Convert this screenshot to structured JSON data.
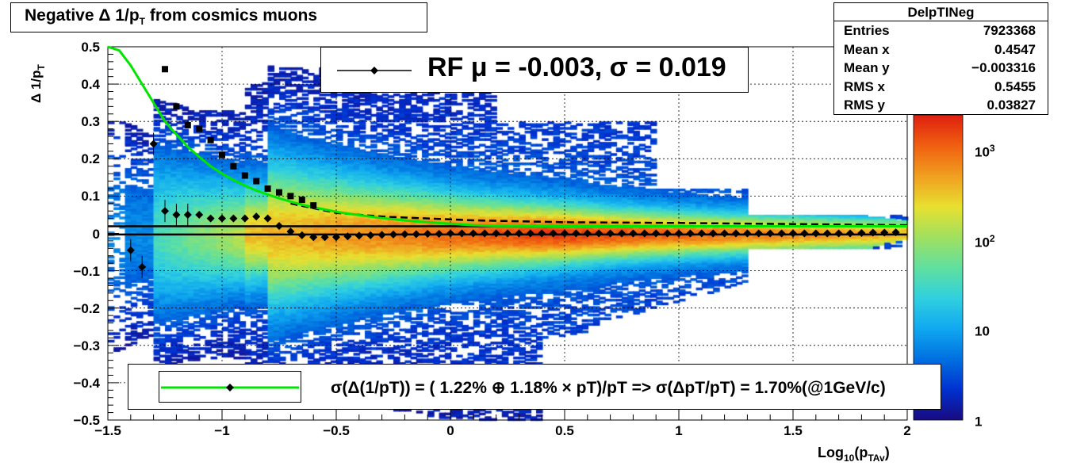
{
  "title": {
    "prefix": "Negative ",
    "delta": "Δ",
    "mid": " 1/p",
    "sub": "T",
    "suffix": " from cosmics muons"
  },
  "stats_box": {
    "name": "DelpTINeg",
    "rows": [
      {
        "label": "Entries",
        "value": "7923368"
      },
      {
        "label": "Mean x",
        "value": "0.4547"
      },
      {
        "label": "Mean y",
        "value": "−0.003316"
      },
      {
        "label": "RMS x",
        "value": "0.5455"
      },
      {
        "label": "RMS y",
        "value": "0.03827"
      }
    ]
  },
  "rf_legend": {
    "text": "RF μ = -0.003, σ =   0.019"
  },
  "fit_legend": {
    "text": "σ(Δ(1/pT)) = ( 1.22% ⊕  1.18% × pT)/pT => σ(ΔpT/pT) =  1.70%(@1GeV/c)"
  },
  "axes": {
    "y_label_main": "Δ 1/p",
    "y_label_sub": "T",
    "x_label_main": "Log",
    "x_label_sub1": "10",
    "x_label_mid": "(p",
    "x_label_sub2": "TAv",
    "x_label_end": ")",
    "x_ticks": [
      "−1.5",
      "−1",
      "−0.5",
      "0",
      "0.5",
      "1",
      "1.5",
      "2"
    ],
    "y_ticks": [
      "0.5",
      "0.4",
      "0.3",
      "0.2",
      "0.1",
      "0",
      "−0.1",
      "−0.2",
      "−0.3",
      "−0.4",
      "−0.5"
    ],
    "z_ticks": [
      {
        "main": "10",
        "exp": "3"
      },
      {
        "main": "10",
        "exp": "2"
      },
      {
        "main": "10",
        "exp": ""
      },
      {
        "main": "1",
        "exp": ""
      }
    ]
  },
  "colors": {
    "fit_curve": "#00e600",
    "markers": "#000000",
    "palette": [
      "#1a0a80",
      "#0030d0",
      "#0070e0",
      "#10a8f0",
      "#30d0e0",
      "#60e0a0",
      "#a0e060",
      "#e8e030",
      "#f0a020",
      "#f06010",
      "#e02010"
    ]
  },
  "chart_data": {
    "type": "heatmap",
    "title": "Negative Δ 1/pT from cosmics muons",
    "xlabel": "Log10(pTAv)",
    "ylabel": "Δ 1/pT",
    "xlim": [
      -1.5,
      2
    ],
    "ylim": [
      -0.5,
      0.5
    ],
    "zlog": true,
    "zlim": [
      1,
      4000
    ],
    "grid": true,
    "rf_mean": -0.003,
    "rf_sigma": 0.019,
    "sigma_points": {
      "x": [
        -1.25,
        -1.2,
        -1.15,
        -1.1,
        -1.05,
        -1.0,
        -0.95,
        -0.9,
        -0.85,
        -0.8,
        -0.75,
        -0.7,
        -0.65,
        -0.6
      ],
      "y": [
        0.44,
        0.34,
        0.29,
        0.28,
        0.25,
        0.21,
        0.18,
        0.155,
        0.14,
        0.12,
        0.11,
        0.1,
        0.09,
        0.075
      ]
    },
    "mean_points": {
      "x": [
        -1.4,
        -1.35,
        -1.3,
        -1.25,
        -1.2,
        -1.15,
        -1.1,
        -1.05,
        -1.0,
        -0.95,
        -0.9,
        -0.85,
        -0.8,
        -0.75,
        -0.7,
        -0.65,
        -0.6,
        -0.55,
        -0.5,
        -0.45,
        -0.4,
        -0.35,
        -0.3,
        -0.25,
        -0.2,
        -0.15,
        -0.1,
        -0.05,
        0.0,
        0.05,
        0.1,
        0.15,
        0.2,
        0.25,
        0.3,
        0.35,
        0.4,
        0.45,
        0.5,
        0.55,
        0.6,
        0.65,
        0.7,
        0.75,
        0.8,
        0.85,
        0.9,
        0.95,
        1.0,
        1.05,
        1.1,
        1.15,
        1.2,
        1.25,
        1.3,
        1.35,
        1.4,
        1.45,
        1.5,
        1.55,
        1.6,
        1.65,
        1.7,
        1.75,
        1.8,
        1.85,
        1.9,
        1.95
      ],
      "y": [
        -0.045,
        -0.09,
        0.24,
        0.06,
        0.05,
        0.05,
        0.05,
        0.04,
        0.04,
        0.04,
        0.04,
        0.045,
        0.04,
        0.02,
        0.005,
        -0.005,
        -0.01,
        -0.01,
        -0.01,
        -0.008,
        -0.006,
        -0.005,
        -0.004,
        -0.003,
        -0.002,
        -0.002,
        -0.001,
        -0.001,
        0.0,
        0.0,
        0.0,
        0.0,
        0.0,
        0.0,
        0.0,
        0.0,
        0.0,
        0.0,
        0.0,
        0.0,
        0.0,
        0.0,
        0.0,
        0.0,
        0.0,
        0.0,
        0.0,
        0.0,
        0.0,
        0.0,
        0.0,
        0.0,
        0.0,
        0.0,
        0.0,
        0.0,
        0.0,
        0.0,
        0.0,
        0.0,
        0.0,
        0.0,
        0.0,
        0.0,
        0.001,
        0.002,
        0.002,
        0.003
      ]
    },
    "fit_function": {
      "form": "sqrt(a^2 + (b*pT)^2)/pT",
      "a_percent": 1.22,
      "b_percent": 1.18
    },
    "fit_curve": {
      "x": [
        -1.5,
        -1.45,
        -1.4,
        -1.35,
        -1.3,
        -1.25,
        -1.2,
        -1.15,
        -1.1,
        -1.05,
        -1.0,
        -0.95,
        -0.9,
        -0.85,
        -0.8,
        -0.75,
        -0.7,
        -0.65,
        -0.6,
        -0.55,
        -0.5,
        -0.45,
        -0.4,
        -0.35,
        -0.3,
        -0.25,
        -0.2,
        -0.15,
        -0.1,
        -0.05,
        0.0,
        0.05,
        0.1,
        0.15,
        0.2,
        0.5,
        1.0,
        1.5,
        2.0
      ],
      "y": [
        0.5,
        0.49,
        0.45,
        0.4,
        0.35,
        0.3,
        0.265,
        0.232,
        0.205,
        0.18,
        0.16,
        0.143,
        0.128,
        0.115,
        0.104,
        0.094,
        0.085,
        0.077,
        0.07,
        0.064,
        0.058,
        0.053,
        0.049,
        0.045,
        0.041,
        0.038,
        0.035,
        0.032,
        0.03,
        0.028,
        0.026,
        0.024,
        0.022,
        0.021,
        0.02,
        0.019,
        0.019,
        0.019,
        0.019
      ]
    },
    "rf_band": [
      0.019,
      -0.003
    ],
    "dashed_sigma_curve": {
      "x": [
        -0.7,
        -0.5,
        -0.3,
        -0.1,
        0.1,
        0.5,
        1.0,
        1.5,
        2.0
      ],
      "y": [
        0.08,
        0.055,
        0.045,
        0.04,
        0.035,
        0.03,
        0.028,
        0.025,
        0.022
      ]
    }
  }
}
